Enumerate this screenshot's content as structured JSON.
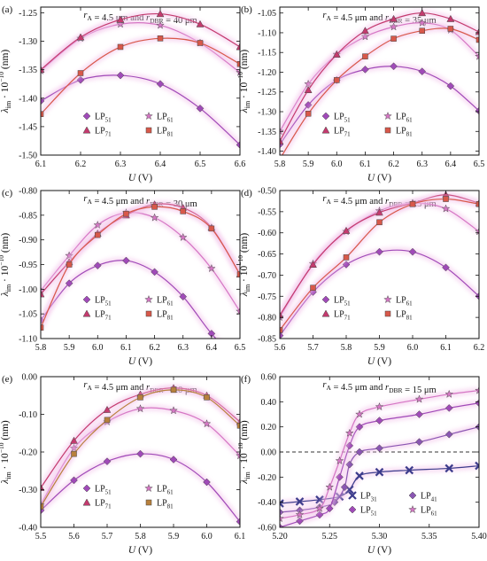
{
  "colors": {
    "LP31": "#3c3c8c",
    "LP41": "#8a56b2",
    "LP51": "#a04ab8",
    "LP61": "#d576c4",
    "LP71": "#c43a6e",
    "LP81": "#d8584a",
    "LP81_e": "#b8803c",
    "glow": "#f3c2ea"
  },
  "chart_data": [
    {
      "type": "line",
      "panel_label": "(a)",
      "title": {
        "r_A": "4.5 μm",
        "r_DBR": "40 μm"
      },
      "xlabel": "U (V)",
      "ylabel": "λim · 10^−10 (nm)",
      "xlim": [
        6.1,
        6.6
      ],
      "ylim": [
        -1.5,
        -1.24
      ],
      "xticks": [
        "6.1",
        "6.2",
        "6.3",
        "6.4",
        "6.5",
        "6.6"
      ],
      "yticks": [
        "-1.25",
        "-1.30",
        "-1.35",
        "-1.40",
        "-1.45",
        "-1.50"
      ],
      "legend_position": "bottom-center",
      "legend_cols": 2,
      "series": [
        {
          "name": "LP51",
          "marker": "diamond",
          "color": "LP51",
          "x": [
            6.1,
            6.2,
            6.3,
            6.4,
            6.5,
            6.6
          ],
          "y": [
            -1.405,
            -1.368,
            -1.36,
            -1.375,
            -1.418,
            -1.482
          ]
        },
        {
          "name": "LP61",
          "marker": "star",
          "color": "LP61",
          "x": [
            6.1,
            6.2,
            6.3,
            6.4,
            6.5,
            6.6
          ],
          "y": [
            -1.352,
            -1.295,
            -1.27,
            -1.272,
            -1.303,
            -1.355
          ]
        },
        {
          "name": "LP71",
          "marker": "triangle",
          "color": "LP71",
          "x": [
            6.1,
            6.2,
            6.3,
            6.4,
            6.5,
            6.6
          ],
          "y": [
            -1.35,
            -1.293,
            -1.262,
            -1.252,
            -1.27,
            -1.31
          ]
        },
        {
          "name": "LP81",
          "marker": "square",
          "color": "LP81",
          "x": [
            6.1,
            6.2,
            6.3,
            6.4,
            6.5,
            6.6
          ],
          "y": [
            -1.428,
            -1.356,
            -1.31,
            -1.295,
            -1.303,
            -1.34
          ]
        }
      ]
    },
    {
      "type": "line",
      "panel_label": "(b)",
      "title": {
        "r_A": "4.5 μm",
        "r_DBR": "35 μm"
      },
      "xlabel": "U (V)",
      "ylabel": "λim · 10^−10 (nm)",
      "xlim": [
        5.8,
        6.5
      ],
      "ylim": [
        -1.41,
        -1.035
      ],
      "xticks": [
        "5.8",
        "5.9",
        "6.0",
        "6.1",
        "6.2",
        "6.3",
        "6.4",
        "6.5"
      ],
      "yticks": [
        "-1.05",
        "-1.10",
        "-1.15",
        "-1.20",
        "-1.25",
        "-1.30",
        "-1.35",
        "-1.40"
      ],
      "legend_position": "bottom-center",
      "legend_cols": 2,
      "series": [
        {
          "name": "LP51",
          "marker": "diamond",
          "color": "LP51",
          "x": [
            5.8,
            5.9,
            6.0,
            6.1,
            6.2,
            6.3,
            6.4,
            6.5
          ],
          "y": [
            -1.383,
            -1.283,
            -1.22,
            -1.193,
            -1.185,
            -1.198,
            -1.235,
            -1.298
          ]
        },
        {
          "name": "LP61",
          "marker": "star",
          "color": "LP61",
          "x": [
            5.8,
            5.9,
            6.0,
            6.1,
            6.2,
            6.3,
            6.4,
            6.5
          ],
          "y": [
            -1.35,
            -1.23,
            -1.155,
            -1.11,
            -1.085,
            -1.075,
            -1.093,
            -1.16
          ]
        },
        {
          "name": "LP71",
          "marker": "triangle",
          "color": "LP71",
          "x": [
            5.8,
            5.9,
            6.0,
            6.1,
            6.2,
            6.3,
            6.4,
            6.5
          ],
          "y": [
            -1.375,
            -1.245,
            -1.155,
            -1.095,
            -1.065,
            -1.05,
            -1.065,
            -1.098
          ]
        },
        {
          "name": "LP81",
          "marker": "square",
          "color": "LP81",
          "x": [
            5.8,
            5.9,
            6.0,
            6.1,
            6.2,
            6.3,
            6.4,
            6.5
          ],
          "y": [
            -1.42,
            -1.305,
            -1.22,
            -1.16,
            -1.115,
            -1.095,
            -1.09,
            -1.118
          ]
        }
      ]
    },
    {
      "type": "line",
      "panel_label": "(c)",
      "title": {
        "r_A": "4.5 μm",
        "r_DBR": "30 μm"
      },
      "xlabel": "U (V)",
      "ylabel": "λim · 10^−10 (nm)",
      "xlim": [
        5.8,
        6.5
      ],
      "ylim": [
        -1.1,
        -0.8
      ],
      "xticks": [
        "5.8",
        "5.9",
        "6.0",
        "6.1",
        "6.2",
        "6.3",
        "6.4",
        "6.5"
      ],
      "yticks": [
        "-0.80",
        "-0.85",
        "-0.90",
        "-0.95",
        "-1.00",
        "-1.05",
        "-1.10"
      ],
      "legend_position": "bottom-center",
      "legend_cols": 2,
      "series": [
        {
          "name": "LP51",
          "marker": "diamond",
          "color": "LP51",
          "x": [
            5.8,
            5.9,
            6.0,
            6.1,
            6.2,
            6.3,
            6.4,
            6.5
          ],
          "y": [
            -1.063,
            -0.988,
            -0.952,
            -0.942,
            -0.965,
            -1.015,
            -1.09,
            -1.15
          ]
        },
        {
          "name": "LP61",
          "marker": "star",
          "color": "LP61",
          "x": [
            5.8,
            5.9,
            6.0,
            6.1,
            6.2,
            6.3,
            6.4,
            6.5
          ],
          "y": [
            -1.003,
            -0.932,
            -0.87,
            -0.845,
            -0.855,
            -0.895,
            -0.958,
            -1.045
          ]
        },
        {
          "name": "LP71",
          "marker": "triangle",
          "color": "LP71",
          "x": [
            5.8,
            5.9,
            6.0,
            6.1,
            6.2,
            6.3,
            6.4,
            6.5
          ],
          "y": [
            -1.01,
            -0.945,
            -0.887,
            -0.85,
            -0.828,
            -0.835,
            -0.875,
            -0.97
          ]
        },
        {
          "name": "LP81",
          "marker": "square",
          "color": "LP81",
          "x": [
            5.8,
            5.9,
            6.0,
            6.1,
            6.2,
            6.3,
            6.4,
            6.5
          ],
          "y": [
            -1.078,
            -0.95,
            -0.89,
            -0.847,
            -0.833,
            -0.842,
            -0.877,
            -0.97
          ]
        }
      ]
    },
    {
      "type": "line",
      "panel_label": "(d)",
      "title": {
        "r_A": "4.5 μm",
        "r_DBR": "25 μm"
      },
      "xlabel": "U (V)",
      "ylabel": "λim · 10^−10 (nm)",
      "xlim": [
        5.6,
        6.2
      ],
      "ylim": [
        -0.85,
        -0.5
      ],
      "xticks": [
        "5.6",
        "5.7",
        "5.8",
        "5.9",
        "6.0",
        "6.1",
        "6.2"
      ],
      "yticks": [
        "-0.50",
        "-0.55",
        "-0.60",
        "-0.65",
        "-0.70",
        "-0.75",
        "-0.80",
        "-0.85"
      ],
      "legend_position": "bottom-center",
      "legend_cols": 2,
      "series": [
        {
          "name": "LP51",
          "marker": "diamond",
          "color": "LP51",
          "x": [
            5.6,
            5.7,
            5.8,
            5.9,
            6.0,
            6.1,
            6.2
          ],
          "y": [
            -0.843,
            -0.74,
            -0.675,
            -0.645,
            -0.645,
            -0.682,
            -0.75
          ]
        },
        {
          "name": "LP61",
          "marker": "star",
          "color": "LP61",
          "x": [
            5.6,
            5.7,
            5.8,
            5.9,
            6.0,
            6.1,
            6.2
          ],
          "y": [
            -0.8,
            -0.673,
            -0.597,
            -0.548,
            -0.53,
            -0.543,
            -0.597
          ]
        },
        {
          "name": "LP71",
          "marker": "triangle",
          "color": "LP71",
          "x": [
            5.6,
            5.7,
            5.8,
            5.9,
            6.0,
            6.1,
            6.2
          ],
          "y": [
            -0.795,
            -0.675,
            -0.595,
            -0.552,
            -0.53,
            -0.51,
            -0.53
          ]
        },
        {
          "name": "LP81",
          "marker": "square",
          "color": "LP81",
          "x": [
            5.6,
            5.7,
            5.8,
            5.9,
            6.0,
            6.1,
            6.2
          ],
          "y": [
            -0.83,
            -0.73,
            -0.658,
            -0.575,
            -0.532,
            -0.52,
            -0.532
          ]
        }
      ]
    },
    {
      "type": "line",
      "panel_label": "(e)",
      "title": {
        "r_A": "4.5 μm",
        "r_DBR": "20 μm"
      },
      "xlabel": "U (V)",
      "ylabel": "λim · 10^−10 (nm)",
      "xlim": [
        5.5,
        6.1
      ],
      "ylim": [
        -0.4,
        0
      ],
      "xticks": [
        "5.5",
        "5.6",
        "5.7",
        "5.8",
        "5.9",
        "6.0",
        "6.1"
      ],
      "yticks": [
        "0.00",
        "-0.10",
        "-0.20",
        "-0.30",
        "-0.40"
      ],
      "legend_position": "bottom-center",
      "legend_cols": 2,
      "series": [
        {
          "name": "LP51",
          "marker": "diamond",
          "color": "LP51",
          "x": [
            5.5,
            5.6,
            5.7,
            5.8,
            5.9,
            6.0,
            6.1
          ],
          "y": [
            -0.355,
            -0.275,
            -0.225,
            -0.205,
            -0.22,
            -0.28,
            -0.385
          ]
        },
        {
          "name": "LP61",
          "marker": "star",
          "color": "LP61",
          "x": [
            5.5,
            5.6,
            5.7,
            5.8,
            5.9,
            6.0,
            6.1
          ],
          "y": [
            -0.34,
            -0.19,
            -0.12,
            -0.085,
            -0.09,
            -0.125,
            -0.21
          ]
        },
        {
          "name": "LP71",
          "marker": "triangle",
          "color": "LP71",
          "x": [
            5.5,
            5.6,
            5.7,
            5.8,
            5.9,
            6.0,
            6.1
          ],
          "y": [
            -0.295,
            -0.17,
            -0.088,
            -0.047,
            -0.03,
            -0.05,
            -0.12
          ]
        },
        {
          "name": "LP81",
          "marker": "square",
          "color": "LP81_e",
          "x": [
            5.5,
            5.6,
            5.7,
            5.8,
            5.9,
            6.0,
            6.1
          ],
          "y": [
            -0.345,
            -0.205,
            -0.115,
            -0.055,
            -0.035,
            -0.055,
            -0.13
          ]
        }
      ]
    },
    {
      "type": "line",
      "panel_label": "(f)",
      "title": {
        "r_A": "4.5 μm",
        "r_DBR": "15 μm"
      },
      "xlabel": "U (V)",
      "ylabel": "λim · 10^−10 (nm)",
      "xlim": [
        5.2,
        5.4
      ],
      "ylim": [
        -0.6,
        0.6
      ],
      "xticks": [
        "5.20",
        "5.25",
        "5.30",
        "5.35",
        "5.40"
      ],
      "yticks": [
        "0.60",
        "0.40",
        "0.20",
        "0.00",
        "-0.20",
        "-0.40",
        "-0.60"
      ],
      "reference_line_y": 0,
      "legend_position": "bottom-right",
      "legend_cols": 2,
      "series": [
        {
          "name": "LP31",
          "marker": "x",
          "color": "LP31",
          "x": [
            5.2,
            5.22,
            5.24,
            5.26,
            5.27,
            5.28,
            5.3,
            5.33,
            5.37,
            5.4
          ],
          "y": [
            -0.41,
            -0.395,
            -0.38,
            -0.355,
            -0.3,
            -0.19,
            -0.16,
            -0.145,
            -0.13,
            -0.11
          ]
        },
        {
          "name": "LP41",
          "marker": "diamond",
          "color": "LP41",
          "x": [
            5.2,
            5.22,
            5.24,
            5.255,
            5.265,
            5.27,
            5.28,
            5.3,
            5.34,
            5.37,
            5.4
          ],
          "y": [
            -0.48,
            -0.465,
            -0.44,
            -0.4,
            -0.28,
            -0.1,
            0.0,
            0.03,
            0.08,
            0.14,
            0.2
          ]
        },
        {
          "name": "LP51",
          "marker": "diamond",
          "color": "LP51",
          "x": [
            5.2,
            5.22,
            5.24,
            5.25,
            5.26,
            5.27,
            5.28,
            5.3,
            5.34,
            5.37,
            5.4
          ],
          "y": [
            -0.6,
            -0.55,
            -0.5,
            -0.45,
            -0.2,
            0.05,
            0.2,
            0.25,
            0.3,
            0.35,
            0.39
          ]
        },
        {
          "name": "LP61",
          "marker": "star",
          "color": "LP61",
          "x": [
            5.2,
            5.22,
            5.24,
            5.25,
            5.26,
            5.27,
            5.28,
            5.3,
            5.34,
            5.37,
            5.4
          ],
          "y": [
            -0.53,
            -0.5,
            -0.45,
            -0.28,
            -0.07,
            0.15,
            0.3,
            0.36,
            0.42,
            0.46,
            0.49
          ]
        }
      ]
    }
  ]
}
